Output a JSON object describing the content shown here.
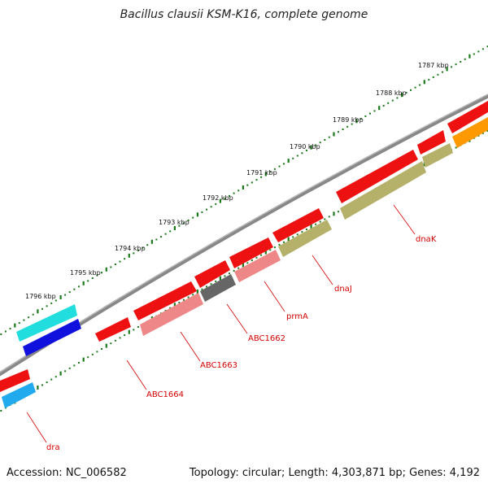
{
  "title": "Bacillus clausii KSM-K16, complete genome",
  "footer": {
    "accession": "Accession: NC_006582",
    "summary": "Topology: circular; Length: 4,303,871 bp; Genes: 4,192"
  },
  "ruler": {
    "ticks": [
      "1787 kbp",
      "1788 kbp",
      "1789 kbp",
      "1790 kbp",
      "1791 kbp",
      "1792 kbp",
      "1793 kbp",
      "1794 kbp",
      "1795 kbp",
      "1796 kbp"
    ]
  },
  "genes": [
    {
      "name": "dnaK"
    },
    {
      "name": "dnaJ"
    },
    {
      "name": "prmA"
    },
    {
      "name": "ABC1662"
    },
    {
      "name": "ABC1663"
    },
    {
      "name": "ABC1664"
    },
    {
      "name": "dra"
    }
  ],
  "colors": {
    "backbone": "#777777",
    "ruler": "#1a7a1a",
    "label": "#d40000",
    "gene_red": "#ee1111",
    "gene_pink": "#ee8888",
    "gene_gray": "#666666",
    "gene_olive": "#b5b06a",
    "gene_cyan": "#22dddd",
    "gene_blue": "#1111dd",
    "gene_skyblue": "#22aaee",
    "gene_orange": "#ff9900"
  }
}
